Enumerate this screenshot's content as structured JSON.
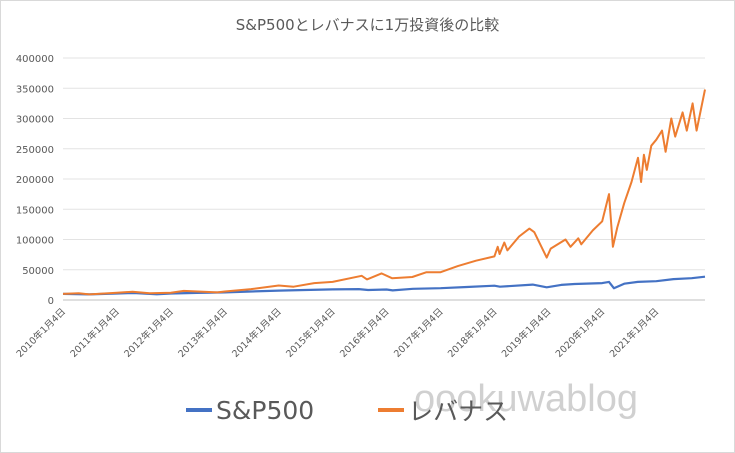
{
  "chart_data": {
    "type": "line",
    "title": "S&P500とレバナスに1万投資後の比較",
    "ylim": [
      0,
      400000
    ],
    "y_ticks": [
      "400000",
      "350000",
      "300000",
      "250000",
      "200000",
      "150000",
      "100000",
      "50000",
      "0"
    ],
    "x_tick_labels": [
      "2010年1月4日",
      "2011年1月4日",
      "2012年1月4日",
      "2013年1月4日",
      "2014年1月4日",
      "2015年1月4日",
      "2016年1月4日",
      "2017年1月4日",
      "2018年1月4日",
      "2019年1月4日",
      "2020年1月4日",
      "2021年1月4日"
    ],
    "x_range": [
      "2010-01-04",
      "2021-11-30"
    ],
    "grid": true,
    "legend_position": "bottom",
    "series": [
      {
        "name": "S&P500",
        "color": "#4472c4",
        "x": [
          "2010-01-04",
          "2010-07-01",
          "2011-01-04",
          "2011-05-01",
          "2011-10-01",
          "2012-01-04",
          "2012-07-01",
          "2013-01-04",
          "2013-07-01",
          "2014-01-04",
          "2014-07-01",
          "2015-01-04",
          "2015-07-01",
          "2015-09-01",
          "2016-01-04",
          "2016-02-15",
          "2016-07-01",
          "2017-01-04",
          "2017-07-01",
          "2018-01-04",
          "2018-02-10",
          "2018-09-20",
          "2018-12-24",
          "2019-04-01",
          "2019-07-01",
          "2020-01-04",
          "2020-02-19",
          "2020-03-23",
          "2020-06-01",
          "2020-09-01",
          "2021-01-04",
          "2021-05-01",
          "2021-09-01",
          "2021-11-30"
        ],
        "values": [
          10000,
          9300,
          10700,
          11500,
          9500,
          10700,
          11800,
          12500,
          14000,
          15600,
          16500,
          17500,
          18000,
          16500,
          17300,
          15900,
          18500,
          19500,
          21500,
          23600,
          22000,
          25500,
          21000,
          25000,
          26500,
          28000,
          30000,
          19500,
          27000,
          30000,
          31000,
          34500,
          36000,
          38500
        ]
      },
      {
        "name": "レバナス",
        "color": "#ed7d31",
        "x": [
          "2010-01-04",
          "2010-04-20",
          "2010-07-01",
          "2011-01-04",
          "2011-04-20",
          "2011-08-15",
          "2012-01-04",
          "2012-04-01",
          "2012-11-15",
          "2013-01-04",
          "2013-07-01",
          "2014-01-04",
          "2014-04-15",
          "2014-09-01",
          "2015-01-04",
          "2015-07-20",
          "2015-08-25",
          "2015-12-01",
          "2016-02-10",
          "2016-06-27",
          "2016-10-01",
          "2017-01-04",
          "2017-05-01",
          "2017-09-01",
          "2018-01-04",
          "2018-01-26",
          "2018-02-08",
          "2018-03-12",
          "2018-04-02",
          "2018-06-20",
          "2018-08-29",
          "2018-10-01",
          "2018-12-24",
          "2019-01-20",
          "2019-04-30",
          "2019-06-03",
          "2019-07-26",
          "2019-08-15",
          "2019-11-01",
          "2020-01-04",
          "2020-02-19",
          "2020-03-16",
          "2020-04-15",
          "2020-06-01",
          "2020-07-20",
          "2020-09-02",
          "2020-09-23",
          "2020-10-12",
          "2020-11-01",
          "2020-12-01",
          "2021-01-04",
          "2021-02-12",
          "2021-03-08",
          "2021-04-16",
          "2021-05-12",
          "2021-07-01",
          "2021-07-30",
          "2021-09-07",
          "2021-10-04",
          "2021-11-30"
        ],
        "values": [
          10000,
          11000,
          9300,
          12000,
          13500,
          11000,
          12000,
          15000,
          12500,
          14000,
          18000,
          24000,
          22000,
          28000,
          30000,
          40000,
          34000,
          44000,
          36000,
          38000,
          46000,
          46000,
          56000,
          65000,
          72000,
          88000,
          76000,
          95000,
          82000,
          105000,
          118000,
          112000,
          70000,
          85000,
          100000,
          88000,
          102000,
          92000,
          115000,
          130000,
          175000,
          88000,
          120000,
          160000,
          195000,
          235000,
          195000,
          240000,
          215000,
          255000,
          265000,
          280000,
          245000,
          300000,
          270000,
          310000,
          280000,
          325000,
          280000,
          348000
        ]
      }
    ]
  },
  "legend": {
    "items": [
      {
        "label": "S&P500",
        "color": "#4472c4"
      },
      {
        "label": "レバナス",
        "color": "#ed7d31"
      }
    ]
  },
  "watermark": "oookuwablog"
}
